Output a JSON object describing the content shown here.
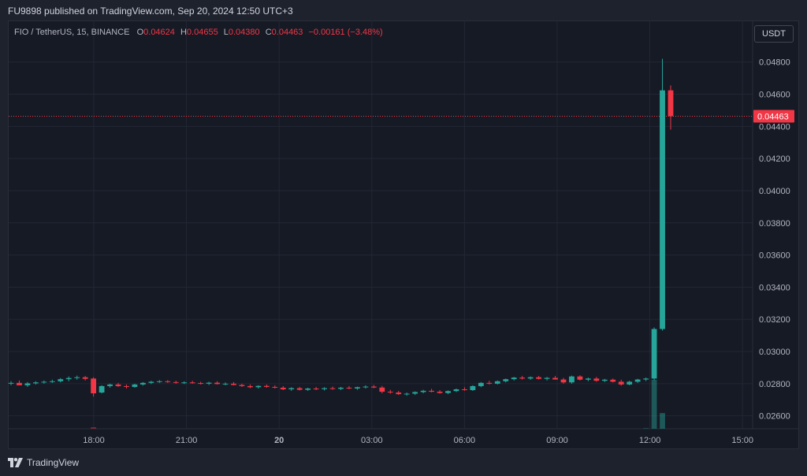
{
  "caption": "FU9898 published on TradingView.com, Sep 20, 2024 12:50 UTC+3",
  "legend": {
    "symbol": "FIO / TetherUS, 15, BINANCE",
    "o_label": "O",
    "o_value": "0.04624",
    "h_label": "H",
    "h_value": "0.04655",
    "l_label": "L",
    "l_value": "0.04380",
    "c_label": "C",
    "c_value": "0.04463",
    "change": "−0.00161 (−3.48%)"
  },
  "currency_button": "USDT",
  "footer": {
    "brand": "TradingView"
  },
  "colors": {
    "up": "#26a69a",
    "down": "#f23645",
    "grid": "#232734",
    "axis_text": "#b2b5be",
    "price_line": "#f23645"
  },
  "chart_data": {
    "type": "candlestick",
    "ylim": [
      0.0252,
      0.0498
    ],
    "y_ticks": [
      "0.04800",
      "0.04600",
      "0.04400",
      "0.04200",
      "0.04000",
      "0.03800",
      "0.03600",
      "0.03400",
      "0.03200",
      "0.03000",
      "0.02800",
      "0.02600"
    ],
    "x_ticks": [
      "18:00",
      "21:00",
      "20",
      "03:00",
      "06:00",
      "09:00",
      "12:00",
      "15:00"
    ],
    "last_price": "0.04463",
    "last_price_value": 0.04463,
    "candles": [
      {
        "o": 0.028,
        "h": 0.02815,
        "l": 0.0279,
        "c": 0.02805
      },
      {
        "o": 0.02805,
        "h": 0.0282,
        "l": 0.02795,
        "c": 0.0279
      },
      {
        "o": 0.0279,
        "h": 0.0281,
        "l": 0.0278,
        "c": 0.02802
      },
      {
        "o": 0.02802,
        "h": 0.02815,
        "l": 0.02795,
        "c": 0.02808
      },
      {
        "o": 0.02808,
        "h": 0.0282,
        "l": 0.028,
        "c": 0.02812
      },
      {
        "o": 0.02812,
        "h": 0.02825,
        "l": 0.02805,
        "c": 0.02815
      },
      {
        "o": 0.02815,
        "h": 0.02835,
        "l": 0.02808,
        "c": 0.02828
      },
      {
        "o": 0.02828,
        "h": 0.02845,
        "l": 0.02815,
        "c": 0.02835
      },
      {
        "o": 0.02835,
        "h": 0.0285,
        "l": 0.02825,
        "c": 0.0284
      },
      {
        "o": 0.0284,
        "h": 0.02848,
        "l": 0.0282,
        "c": 0.0283
      },
      {
        "o": 0.02832,
        "h": 0.0284,
        "l": 0.0272,
        "c": 0.0274
      },
      {
        "o": 0.02745,
        "h": 0.0279,
        "l": 0.0274,
        "c": 0.02785
      },
      {
        "o": 0.02785,
        "h": 0.028,
        "l": 0.02775,
        "c": 0.02795
      },
      {
        "o": 0.02795,
        "h": 0.02805,
        "l": 0.0278,
        "c": 0.02785
      },
      {
        "o": 0.02785,
        "h": 0.02795,
        "l": 0.0277,
        "c": 0.0278
      },
      {
        "o": 0.0278,
        "h": 0.028,
        "l": 0.02775,
        "c": 0.02795
      },
      {
        "o": 0.02795,
        "h": 0.0281,
        "l": 0.02788,
        "c": 0.02805
      },
      {
        "o": 0.02805,
        "h": 0.02818,
        "l": 0.02798,
        "c": 0.02812
      },
      {
        "o": 0.02812,
        "h": 0.02822,
        "l": 0.02805,
        "c": 0.02815
      },
      {
        "o": 0.02815,
        "h": 0.02822,
        "l": 0.02805,
        "c": 0.0281
      },
      {
        "o": 0.0281,
        "h": 0.02818,
        "l": 0.028,
        "c": 0.02806
      },
      {
        "o": 0.02806,
        "h": 0.02815,
        "l": 0.02798,
        "c": 0.02808
      },
      {
        "o": 0.02808,
        "h": 0.02818,
        "l": 0.028,
        "c": 0.02804
      },
      {
        "o": 0.02804,
        "h": 0.02812,
        "l": 0.02795,
        "c": 0.028
      },
      {
        "o": 0.028,
        "h": 0.02812,
        "l": 0.02792,
        "c": 0.02806
      },
      {
        "o": 0.02806,
        "h": 0.02815,
        "l": 0.02795,
        "c": 0.02798
      },
      {
        "o": 0.02798,
        "h": 0.02808,
        "l": 0.0279,
        "c": 0.028
      },
      {
        "o": 0.028,
        "h": 0.0281,
        "l": 0.0279,
        "c": 0.02792
      },
      {
        "o": 0.02792,
        "h": 0.028,
        "l": 0.0278,
        "c": 0.02785
      },
      {
        "o": 0.02785,
        "h": 0.02795,
        "l": 0.02772,
        "c": 0.02778
      },
      {
        "o": 0.02778,
        "h": 0.0279,
        "l": 0.0277,
        "c": 0.02786
      },
      {
        "o": 0.02786,
        "h": 0.02795,
        "l": 0.02775,
        "c": 0.0278
      },
      {
        "o": 0.0278,
        "h": 0.0279,
        "l": 0.0277,
        "c": 0.02775
      },
      {
        "o": 0.02775,
        "h": 0.02785,
        "l": 0.0276,
        "c": 0.02765
      },
      {
        "o": 0.02765,
        "h": 0.02778,
        "l": 0.02755,
        "c": 0.02772
      },
      {
        "o": 0.02772,
        "h": 0.0278,
        "l": 0.02758,
        "c": 0.02762
      },
      {
        "o": 0.02762,
        "h": 0.02775,
        "l": 0.02755,
        "c": 0.0277
      },
      {
        "o": 0.0277,
        "h": 0.0278,
        "l": 0.0276,
        "c": 0.02766
      },
      {
        "o": 0.02766,
        "h": 0.02778,
        "l": 0.02758,
        "c": 0.02772
      },
      {
        "o": 0.02772,
        "h": 0.02782,
        "l": 0.02762,
        "c": 0.02768
      },
      {
        "o": 0.02768,
        "h": 0.0278,
        "l": 0.0276,
        "c": 0.02775
      },
      {
        "o": 0.02775,
        "h": 0.02785,
        "l": 0.02766,
        "c": 0.0277
      },
      {
        "o": 0.0277,
        "h": 0.02782,
        "l": 0.02762,
        "c": 0.02778
      },
      {
        "o": 0.02778,
        "h": 0.0279,
        "l": 0.0277,
        "c": 0.02782
      },
      {
        "o": 0.02782,
        "h": 0.02792,
        "l": 0.02772,
        "c": 0.02776
      },
      {
        "o": 0.02776,
        "h": 0.02786,
        "l": 0.0274,
        "c": 0.0275
      },
      {
        "o": 0.0275,
        "h": 0.02762,
        "l": 0.02738,
        "c": 0.02745
      },
      {
        "o": 0.02745,
        "h": 0.02755,
        "l": 0.0273,
        "c": 0.02735
      },
      {
        "o": 0.02735,
        "h": 0.02745,
        "l": 0.02725,
        "c": 0.02738
      },
      {
        "o": 0.02738,
        "h": 0.02752,
        "l": 0.0273,
        "c": 0.02748
      },
      {
        "o": 0.02748,
        "h": 0.02762,
        "l": 0.0274,
        "c": 0.02756
      },
      {
        "o": 0.02756,
        "h": 0.02768,
        "l": 0.02746,
        "c": 0.0275
      },
      {
        "o": 0.0275,
        "h": 0.0276,
        "l": 0.02738,
        "c": 0.02742
      },
      {
        "o": 0.02742,
        "h": 0.02758,
        "l": 0.02735,
        "c": 0.02754
      },
      {
        "o": 0.02754,
        "h": 0.0277,
        "l": 0.02748,
        "c": 0.02765
      },
      {
        "o": 0.02765,
        "h": 0.02778,
        "l": 0.02756,
        "c": 0.0276
      },
      {
        "o": 0.0276,
        "h": 0.0279,
        "l": 0.02755,
        "c": 0.02785
      },
      {
        "o": 0.02785,
        "h": 0.0281,
        "l": 0.02778,
        "c": 0.02805
      },
      {
        "o": 0.02805,
        "h": 0.02818,
        "l": 0.02795,
        "c": 0.028
      },
      {
        "o": 0.028,
        "h": 0.0282,
        "l": 0.02795,
        "c": 0.02815
      },
      {
        "o": 0.02815,
        "h": 0.02832,
        "l": 0.02808,
        "c": 0.02828
      },
      {
        "o": 0.02828,
        "h": 0.02842,
        "l": 0.0282,
        "c": 0.02838
      },
      {
        "o": 0.02838,
        "h": 0.02848,
        "l": 0.02826,
        "c": 0.02832
      },
      {
        "o": 0.02832,
        "h": 0.02845,
        "l": 0.02824,
        "c": 0.0284
      },
      {
        "o": 0.0284,
        "h": 0.02848,
        "l": 0.02826,
        "c": 0.0283
      },
      {
        "o": 0.0283,
        "h": 0.02842,
        "l": 0.0282,
        "c": 0.02836
      },
      {
        "o": 0.02836,
        "h": 0.02848,
        "l": 0.02826,
        "c": 0.02826
      },
      {
        "o": 0.02826,
        "h": 0.02836,
        "l": 0.028,
        "c": 0.02808
      },
      {
        "o": 0.02808,
        "h": 0.0285,
        "l": 0.028,
        "c": 0.02845
      },
      {
        "o": 0.02845,
        "h": 0.02852,
        "l": 0.0282,
        "c": 0.02825
      },
      {
        "o": 0.02825,
        "h": 0.02838,
        "l": 0.02815,
        "c": 0.02832
      },
      {
        "o": 0.02832,
        "h": 0.02842,
        "l": 0.02812,
        "c": 0.02818
      },
      {
        "o": 0.02818,
        "h": 0.0283,
        "l": 0.0281,
        "c": 0.02825
      },
      {
        "o": 0.02825,
        "h": 0.02832,
        "l": 0.02808,
        "c": 0.02812
      },
      {
        "o": 0.02812,
        "h": 0.02825,
        "l": 0.02788,
        "c": 0.02795
      },
      {
        "o": 0.02795,
        "h": 0.02818,
        "l": 0.0279,
        "c": 0.02812
      },
      {
        "o": 0.02812,
        "h": 0.0283,
        "l": 0.02805,
        "c": 0.02826
      },
      {
        "o": 0.02826,
        "h": 0.02838,
        "l": 0.02816,
        "c": 0.02832
      },
      {
        "o": 0.02832,
        "h": 0.0315,
        "l": 0.02822,
        "c": 0.0314
      },
      {
        "o": 0.0314,
        "h": 0.0482,
        "l": 0.0313,
        "c": 0.04624
      },
      {
        "o": 0.04624,
        "h": 0.04655,
        "l": 0.0438,
        "c": 0.04463
      }
    ],
    "volumes": [
      0,
      0,
      0,
      0,
      0,
      0,
      0,
      0,
      0,
      0,
      3,
      0,
      0,
      0,
      0,
      0,
      0,
      0,
      0,
      0,
      0,
      0,
      0,
      0,
      0,
      0,
      0,
      0,
      0,
      0,
      0,
      0,
      0,
      0,
      0,
      0,
      0,
      0,
      0,
      0,
      0,
      0,
      0,
      0,
      0,
      0,
      0,
      0,
      0,
      0,
      0,
      0,
      0,
      0,
      0,
      0,
      0,
      0,
      0,
      0,
      0,
      0,
      0,
      0,
      0,
      0,
      0,
      0,
      0,
      0,
      0,
      0,
      0,
      0,
      0,
      0,
      0,
      1,
      100,
      32
    ]
  }
}
